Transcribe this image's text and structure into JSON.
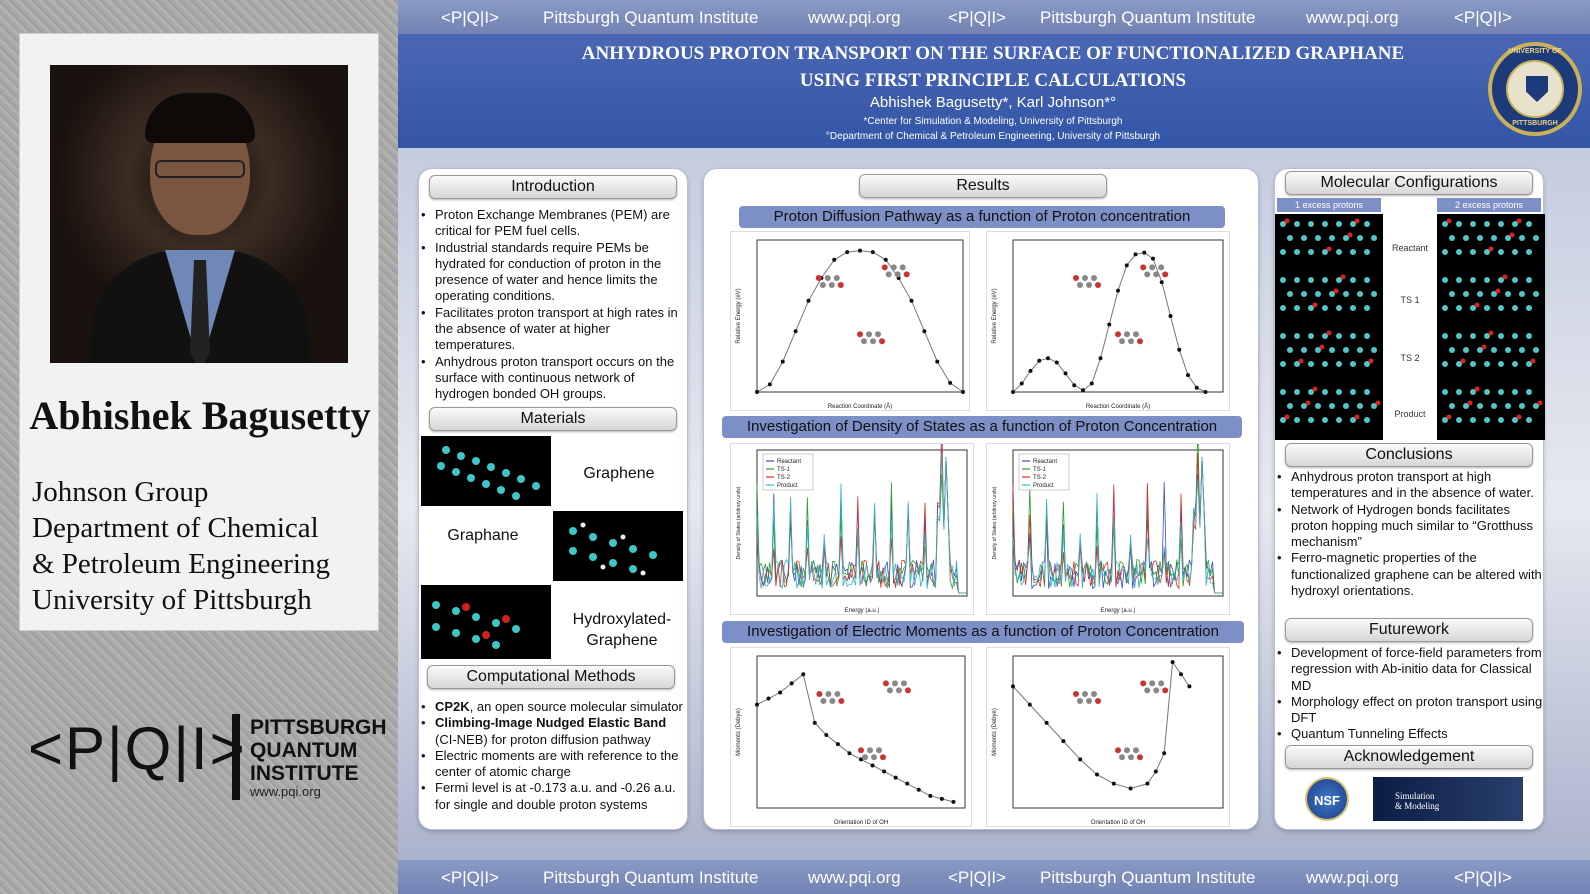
{
  "banner": {
    "mark": "<P|Q|I>",
    "inst": "Pittsburgh Quantum Institute",
    "url": "www.pqi.org"
  },
  "person": {
    "name": "Abhishek Bagusetty",
    "affil": [
      "Johnson Group",
      "Department of Chemical",
      "& Petroleum Engineering",
      "University of Pittsburgh"
    ]
  },
  "pqi": {
    "mark": "<P|Q|I>",
    "line1": "PITTSBURGH",
    "line2": "QUANTUM",
    "line3": "INSTITUTE",
    "url": "www.pqi.org"
  },
  "header": {
    "title1": "ANHYDROUS PROTON TRANSPORT ON THE SURFACE OF FUNCTIONALIZED GRAPHANE",
    "title2": "USING FIRST PRINCIPLE CALCULATIONS",
    "authors": "Abhishek Bagusetty*, Karl Johnson*°",
    "aff1": "*Center for Simulation & Modeling, University of Pittsburgh",
    "aff2": "°Department of Chemical & Petroleum Engineering, University of Pittsburgh",
    "seal_top": "UNIVERSITY OF",
    "seal_bottom": "PITTSBURGH"
  },
  "intro": {
    "title": "Introduction",
    "items": [
      "Proton Exchange Membranes (PEM) are critical for PEM fuel cells.",
      "Industrial standards require PEMs be hydrated for   conduction of proton in the presence of water and hence limits the operating conditions.",
      "Facilitates proton transport at high rates in the absence of water at higher temperatures.",
      "Anhydrous proton transport occurs on the surface with continuous network of hydrogen bonded OH groups."
    ]
  },
  "materials": {
    "title": "Materials",
    "graphene": "Graphene",
    "graphane": "Graphane",
    "hydroxylated": "Hydroxylated-\nGraphene"
  },
  "methods": {
    "title": "Computational Methods",
    "items": [
      {
        "b": "CP2K",
        "t": ", an open source molecular simulator"
      },
      {
        "b": "Climbing-Image Nudged Elastic Band",
        "t": " (CI-NEB) for proton diffusion pathway"
      },
      {
        "b": "",
        "t": "Electric moments are with reference to the center of atomic charge"
      },
      {
        "b": "",
        "t": "Fermi level is at -0.173 a.u. and -0.26 a.u. for single and double proton systems"
      }
    ]
  },
  "results": {
    "title": "Results",
    "sub1": "Proton Diffusion Pathway as a function of Proton concentration",
    "sub2": "Investigation of Density of States as a function of Proton Concentration",
    "sub3": "Investigation of Electric Moments as a function of Proton Concentration",
    "ts1": "TS-1",
    "ts2": "TS-2",
    "xl_rc": "Reaction Coordinate (Å)",
    "yl_re": "Relative Energy (eV)",
    "xl_en": "Energy (a.u.)",
    "yl_dos": "Density of States (arbitrary units)",
    "xl_oh": "Orientation ID of OH",
    "yl_mom": "Moments (Debye)",
    "legend": [
      "Reactant",
      "TS-1",
      "TS-2",
      "Product"
    ]
  },
  "chart_data": [
    {
      "type": "line",
      "title": "",
      "xlabel": "Reaction Coordinate (Å)",
      "ylabel": "Relative Energy (eV)",
      "xlim": [
        0,
        4
      ],
      "ylim": [
        0,
        0.1
      ],
      "x": [
        0,
        0.25,
        0.5,
        0.75,
        1,
        1.25,
        1.5,
        1.75,
        2,
        2.25,
        2.5,
        2.75,
        3,
        3.25,
        3.5,
        3.75,
        4
      ],
      "y": [
        0,
        0.005,
        0.02,
        0.04,
        0.06,
        0.075,
        0.087,
        0.092,
        0.093,
        0.092,
        0.087,
        0.075,
        0.06,
        0.04,
        0.02,
        0.006,
        0
      ]
    },
    {
      "type": "line",
      "title": "",
      "xlabel": "Reaction Coordinate (Å)",
      "ylabel": "Relative Energy (eV)",
      "xlim": [
        0,
        6
      ],
      "ylim": [
        0,
        0.18
      ],
      "x": [
        0,
        0.25,
        0.5,
        0.75,
        1,
        1.25,
        1.5,
        1.75,
        2,
        2.25,
        2.5,
        2.75,
        3,
        3.25,
        3.5,
        3.75,
        4,
        4.25,
        4.5,
        4.75,
        5,
        5.25,
        5.5
      ],
      "y": [
        0,
        0.01,
        0.025,
        0.037,
        0.04,
        0.035,
        0.022,
        0.008,
        0.002,
        0.01,
        0.04,
        0.08,
        0.12,
        0.15,
        0.163,
        0.165,
        0.158,
        0.13,
        0.09,
        0.05,
        0.02,
        0.005,
        0
      ]
    },
    {
      "type": "line",
      "title": "",
      "xlabel": "Orientation ID of OH",
      "ylabel": "Moments (Debye)",
      "xlim": [
        0,
        18
      ],
      "ylim": [
        5,
        30
      ],
      "x": [
        0,
        1,
        2,
        3,
        4,
        5,
        6,
        7,
        8,
        9,
        10,
        11,
        12,
        13,
        14,
        15,
        16,
        17
      ],
      "y": [
        22,
        23,
        24,
        25.5,
        27,
        19,
        17,
        15.5,
        14,
        13,
        12,
        11,
        10,
        9,
        8,
        7,
        6.5,
        6
      ]
    },
    {
      "type": "line",
      "title": "",
      "xlabel": "Orientation ID of OH",
      "ylabel": "Moments (Debye)",
      "xlim": [
        0,
        25
      ],
      "ylim": [
        10,
        35
      ],
      "x": [
        0,
        2,
        4,
        6,
        8,
        10,
        12,
        14,
        16,
        17,
        18,
        19,
        20,
        21
      ],
      "y": [
        30,
        27,
        24,
        21,
        18,
        15.5,
        14,
        13.2,
        14,
        16,
        19,
        34,
        32,
        30
      ]
    }
  ],
  "molecular": {
    "title": "Molecular Configurations",
    "one": "1 excess protons",
    "two": "2 excess protons",
    "rows": [
      "Reactant",
      "TS 1",
      "TS 2",
      "Product"
    ]
  },
  "conclusions": {
    "title": "Conclusions",
    "items": [
      "Anhydrous proton transport at high temperatures and in the absence of water.",
      "Network of Hydrogen bonds facilitates proton hopping much similar to “Grotthuss mechanism”",
      "Ferro-magnetic properties of the functionalized graphene can be altered with hydroxyl orientations."
    ]
  },
  "futurework": {
    "title": "Futurework",
    "items": [
      "Development of  force-field parameters from regression with Ab-initio data for Classical MD",
      "Morphology effect on proton transport using DFT",
      "Quantum Tunneling Effects"
    ]
  },
  "ack": {
    "title": "Acknowledgement",
    "nsf": "NSF",
    "csm": "Simulation\n& Modeling"
  }
}
